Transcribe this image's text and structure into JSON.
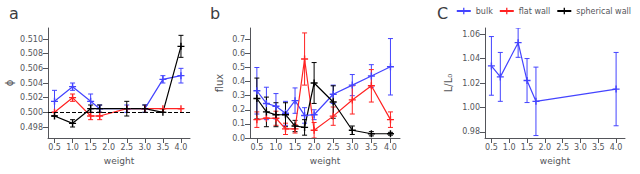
{
  "chart_data": [
    {
      "type": "line",
      "title": "a",
      "xlabel": "weight",
      "ylabel": "ϕ",
      "x": [
        0.5,
        1.0,
        1.5,
        1.75,
        2.5,
        3.0,
        3.5,
        4.0
      ],
      "series": [
        {
          "name": "bulk",
          "color": "#4444ff",
          "marker": "plus",
          "values": [
            0.5015,
            0.5035,
            0.5015,
            0.5005,
            0.5005,
            0.5005,
            0.5045,
            0.505
          ],
          "errors": [
            0.0015,
            0.0005,
            0.001,
            0.0005,
            0.0005,
            0.0005,
            0.0005,
            0.001
          ]
        },
        {
          "name": "flat wall",
          "color": "#ff2222",
          "marker": "plus",
          "values": [
            0.5,
            0.502,
            0.4995,
            0.4995,
            0.5005,
            0.5005,
            0.5005,
            0.5005
          ],
          "errors": [
            0.0,
            0.0005,
            0.0005,
            0.0005,
            0.0,
            0.0,
            0.0,
            0.0
          ]
        },
        {
          "name": "spherical wall",
          "color": "#000000",
          "marker": "plus",
          "values": [
            0.4995,
            0.4985,
            0.5005,
            0.5005,
            0.5005,
            0.5005,
            0.5,
            0.509
          ],
          "errors": [
            0.0,
            0.0005,
            0.0005,
            0.0005,
            0.001,
            0.0005,
            0.0,
            0.0015
          ]
        }
      ],
      "hline": {
        "y": 0.5,
        "color": "#000000",
        "line_style": "dashed"
      },
      "xlim": [
        0.32,
        4.25
      ],
      "xticks": [
        0.5,
        {
          "value": 1,
          "label": "1.0"
        },
        1.5,
        {
          "value": 2,
          "label": "2.0"
        },
        2.5,
        {
          "value": 3,
          "label": "3.0"
        },
        3.5,
        {
          "value": 4,
          "label": "4.0"
        }
      ],
      "ylim": [
        0.4965,
        0.5115
      ],
      "yticks": [
        0.498,
        {
          "value": 0.5,
          "label": "0.500"
        },
        0.502,
        0.504,
        0.506,
        0.508,
        {
          "value": 0.51,
          "label": "0.510"
        }
      ],
      "grid": false,
      "legend": "upper right"
    },
    {
      "type": "line",
      "title": "b",
      "xlabel": "weight",
      "ylabel": "flux",
      "x": [
        0.5,
        0.75,
        1.0,
        1.25,
        1.5,
        1.75,
        2.0,
        2.5,
        3.0,
        3.5,
        4.0
      ],
      "series": [
        {
          "color": "#4444ff",
          "marker": "plus",
          "values": [
            0.335,
            0.245,
            0.225,
            0.175,
            0.265,
            0.16,
            0.165,
            0.31,
            0.375,
            0.44,
            0.505
          ],
          "errors": [
            0.165,
            0.115,
            0.09,
            0.085,
            0.09,
            0.055,
            0.035,
            0.065,
            0.075,
            0.08,
            0.2
          ]
        },
        {
          "color": "#ff2222",
          "marker": "plus",
          "values": [
            0.13,
            0.14,
            0.14,
            0.065,
            0.065,
            0.56,
            0.055,
            0.155,
            0.27,
            0.37,
            0.13
          ],
          "errors": [
            0.055,
            0.0,
            0.05,
            0.04,
            0.03,
            0.185,
            0.055,
            0.065,
            0.1,
            0.115,
            0.055
          ]
        },
        {
          "color": "#000000",
          "marker": "plus",
          "values": [
            0.28,
            0.185,
            0.165,
            0.165,
            0.085,
            0.075,
            0.39,
            0.255,
            0.055,
            0.03,
            0.03
          ],
          "errors": [
            0.145,
            0.105,
            0.085,
            0.085,
            0.04,
            0.055,
            0.145,
            0.115,
            0.03,
            0.015,
            0.01
          ]
        }
      ],
      "xlim": [
        0.32,
        4.25
      ],
      "xticks": [
        0.5,
        {
          "value": 1,
          "label": "1.0"
        },
        1.5,
        {
          "value": 2,
          "label": "2.0"
        },
        2.5,
        {
          "value": 3,
          "label": "3.0"
        },
        3.5,
        {
          "value": 4,
          "label": "4.0"
        }
      ],
      "ylim": [
        0.0,
        0.78
      ],
      "yticks": [
        {
          "value": 0,
          "label": "0.0"
        },
        0.1,
        0.2,
        0.3,
        0.4,
        0.5,
        0.6,
        0.7
      ],
      "grid": false
    },
    {
      "type": "line",
      "title": "C",
      "xlabel": "weight",
      "ylabel": "L/L₀",
      "x": [
        0.5,
        0.75,
        1.25,
        1.5,
        1.75,
        4.0
      ],
      "series": [
        {
          "color": "#4444ff",
          "marker": "plus",
          "values": [
            1.034,
            1.025,
            1.053,
            1.022,
            1.005,
            1.015
          ],
          "errors": [
            0.024,
            0.02,
            0.012,
            0.018,
            0.028,
            0.03
          ]
        }
      ],
      "xlim": [
        0.32,
        4.25
      ],
      "xticks": [
        0.5,
        {
          "value": 1,
          "label": "1.0"
        },
        1.5,
        {
          "value": 2,
          "label": "2.0"
        },
        2.5,
        {
          "value": 3,
          "label": "3.0"
        },
        3.5,
        {
          "value": 4,
          "label": "4.0"
        }
      ],
      "ylim": [
        0.975,
        1.065
      ],
      "yticks": [
        0.98,
        {
          "value": 1,
          "label": "1.00"
        },
        1.02,
        1.04,
        1.06
      ],
      "grid": false
    }
  ]
}
